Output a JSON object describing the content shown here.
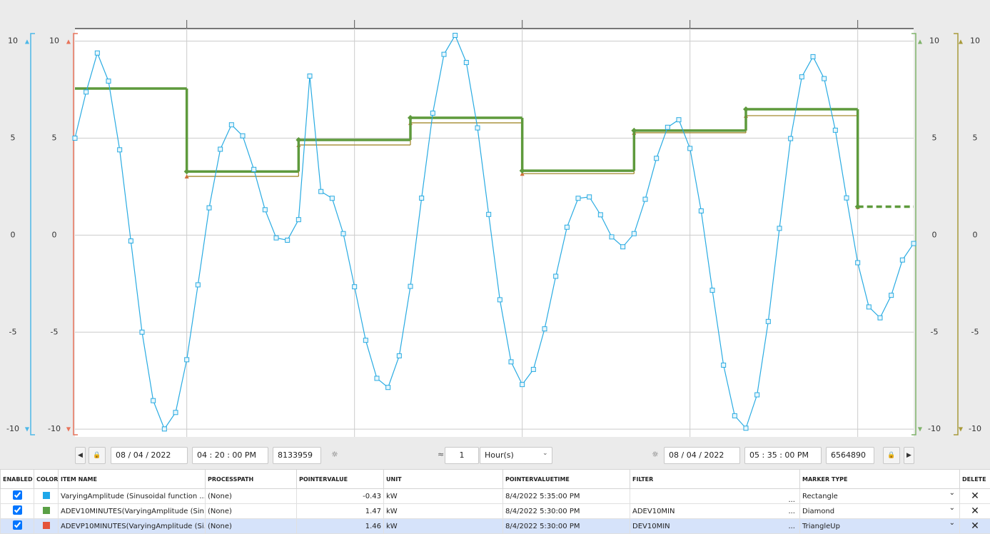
{
  "chart_data": {
    "type": "line",
    "xlim": [
      0,
      75
    ],
    "xticks": [
      10,
      25,
      40,
      55,
      70
    ],
    "ylim": [
      -10.4,
      10.65
    ],
    "yticks": [
      -10,
      -5,
      0,
      5,
      10
    ],
    "grid": true,
    "axis_colors": [
      "#4db8e8",
      "#e8735a",
      "#7fb36a",
      "#a89a3a"
    ],
    "series": [
      {
        "color": "#29abe2",
        "marker": "square",
        "x": [
          0,
          1,
          2,
          3,
          4,
          5,
          6,
          7,
          8,
          9,
          10,
          11,
          12,
          13,
          14,
          15,
          16,
          17,
          18,
          19,
          20,
          21,
          22,
          23,
          24,
          25,
          26,
          27,
          28,
          29,
          30,
          31,
          32,
          33,
          34,
          35,
          36,
          37,
          38,
          39,
          40,
          41,
          42,
          43,
          44,
          45,
          46,
          47,
          48,
          49,
          50,
          51,
          52,
          53,
          54,
          55,
          56,
          57,
          58,
          59,
          60,
          61,
          62,
          63,
          64,
          65,
          66,
          67,
          68,
          69,
          70,
          71,
          72,
          73,
          74,
          75
        ],
        "values": [
          5.0,
          7.38,
          9.39,
          7.94,
          4.4,
          -0.3,
          -5.0,
          -8.53,
          -9.99,
          -9.14,
          -6.42,
          -2.56,
          1.41,
          4.43,
          5.69,
          5.12,
          3.39,
          1.31,
          -0.14,
          -0.26,
          0.8,
          8.2,
          2.25,
          1.9,
          0.08,
          -2.66,
          -5.42,
          -7.38,
          -7.85,
          -6.22,
          -2.64,
          1.91,
          6.29,
          9.32,
          10.3,
          8.9,
          5.53,
          1.07,
          -3.33,
          -6.53,
          -7.7,
          -6.92,
          -4.83,
          -2.12,
          0.41,
          1.9,
          1.97,
          1.05,
          -0.09,
          -0.6,
          0.08,
          1.85,
          3.96,
          5.56,
          5.95,
          4.47,
          1.25,
          -2.84,
          -6.7,
          -9.31,
          -9.95,
          -8.23,
          -4.45,
          0.35,
          4.98,
          8.16,
          9.2,
          8.07,
          5.41,
          1.92,
          -1.42,
          -3.7,
          -4.26,
          -3.1,
          -1.28,
          -0.43
        ]
      },
      {
        "color": "#5e9a3c",
        "marker": "diamond",
        "step": true,
        "x": [
          0,
          10,
          20,
          30,
          40,
          50,
          60,
          70
        ],
        "values": [
          7.56,
          3.28,
          4.91,
          6.05,
          3.32,
          5.39,
          6.49,
          1.47
        ]
      },
      {
        "color": "#a38a2e",
        "marker": "triangle",
        "step": true,
        "x": [
          10,
          20,
          30,
          40,
          50,
          60,
          70
        ],
        "values": [
          3.03,
          4.65,
          5.79,
          3.17,
          5.28,
          6.16,
          1.46
        ]
      }
    ]
  },
  "toolbar": {
    "start_date": "08 / 04 / 2022",
    "start_time": "04 : 20 : 00  PM",
    "start_counter": 8133959,
    "interval": 1,
    "interval_unit": "Hour(s)",
    "end_date": "08 / 04 / 2022",
    "end_time": "05 : 35 : 00  PM",
    "end_counter": 6564890
  },
  "table": {
    "columns": [
      "ENABLED",
      "COLOR",
      "ITEM NAME",
      "PROCESSPATH",
      "POINTERVALUE",
      "UNIT",
      "POINTERVALUETIME",
      "FILTER",
      "MARKER TYPE",
      "DELETE"
    ],
    "rows": [
      {
        "enabled": true,
        "color": "#1ea7e9",
        "cells": [
          "VaryingAmplitude (Sinusoidal function ...",
          "(None)",
          -0.43,
          "kW",
          "8/4/2022 5:35:00 PM",
          "",
          "Rectangle"
        ]
      },
      {
        "enabled": true,
        "color": "#5aa046",
        "cells": [
          "ADEV10MINUTES(VaryingAmplitude (Sin...",
          "(None)",
          1.47,
          "kW",
          "8/4/2022 5:30:00 PM",
          "ADEV10MIN",
          "Diamond"
        ]
      },
      {
        "enabled": true,
        "color": "#e4533a",
        "selected": true,
        "cells": [
          "ADEVP10MINUTES(VaryingAmplitude (Si...",
          "(None)",
          1.46,
          "kW",
          "8/4/2022 5:30:00 PM",
          "DEV10MIN",
          "TriangleUp"
        ]
      }
    ]
  }
}
